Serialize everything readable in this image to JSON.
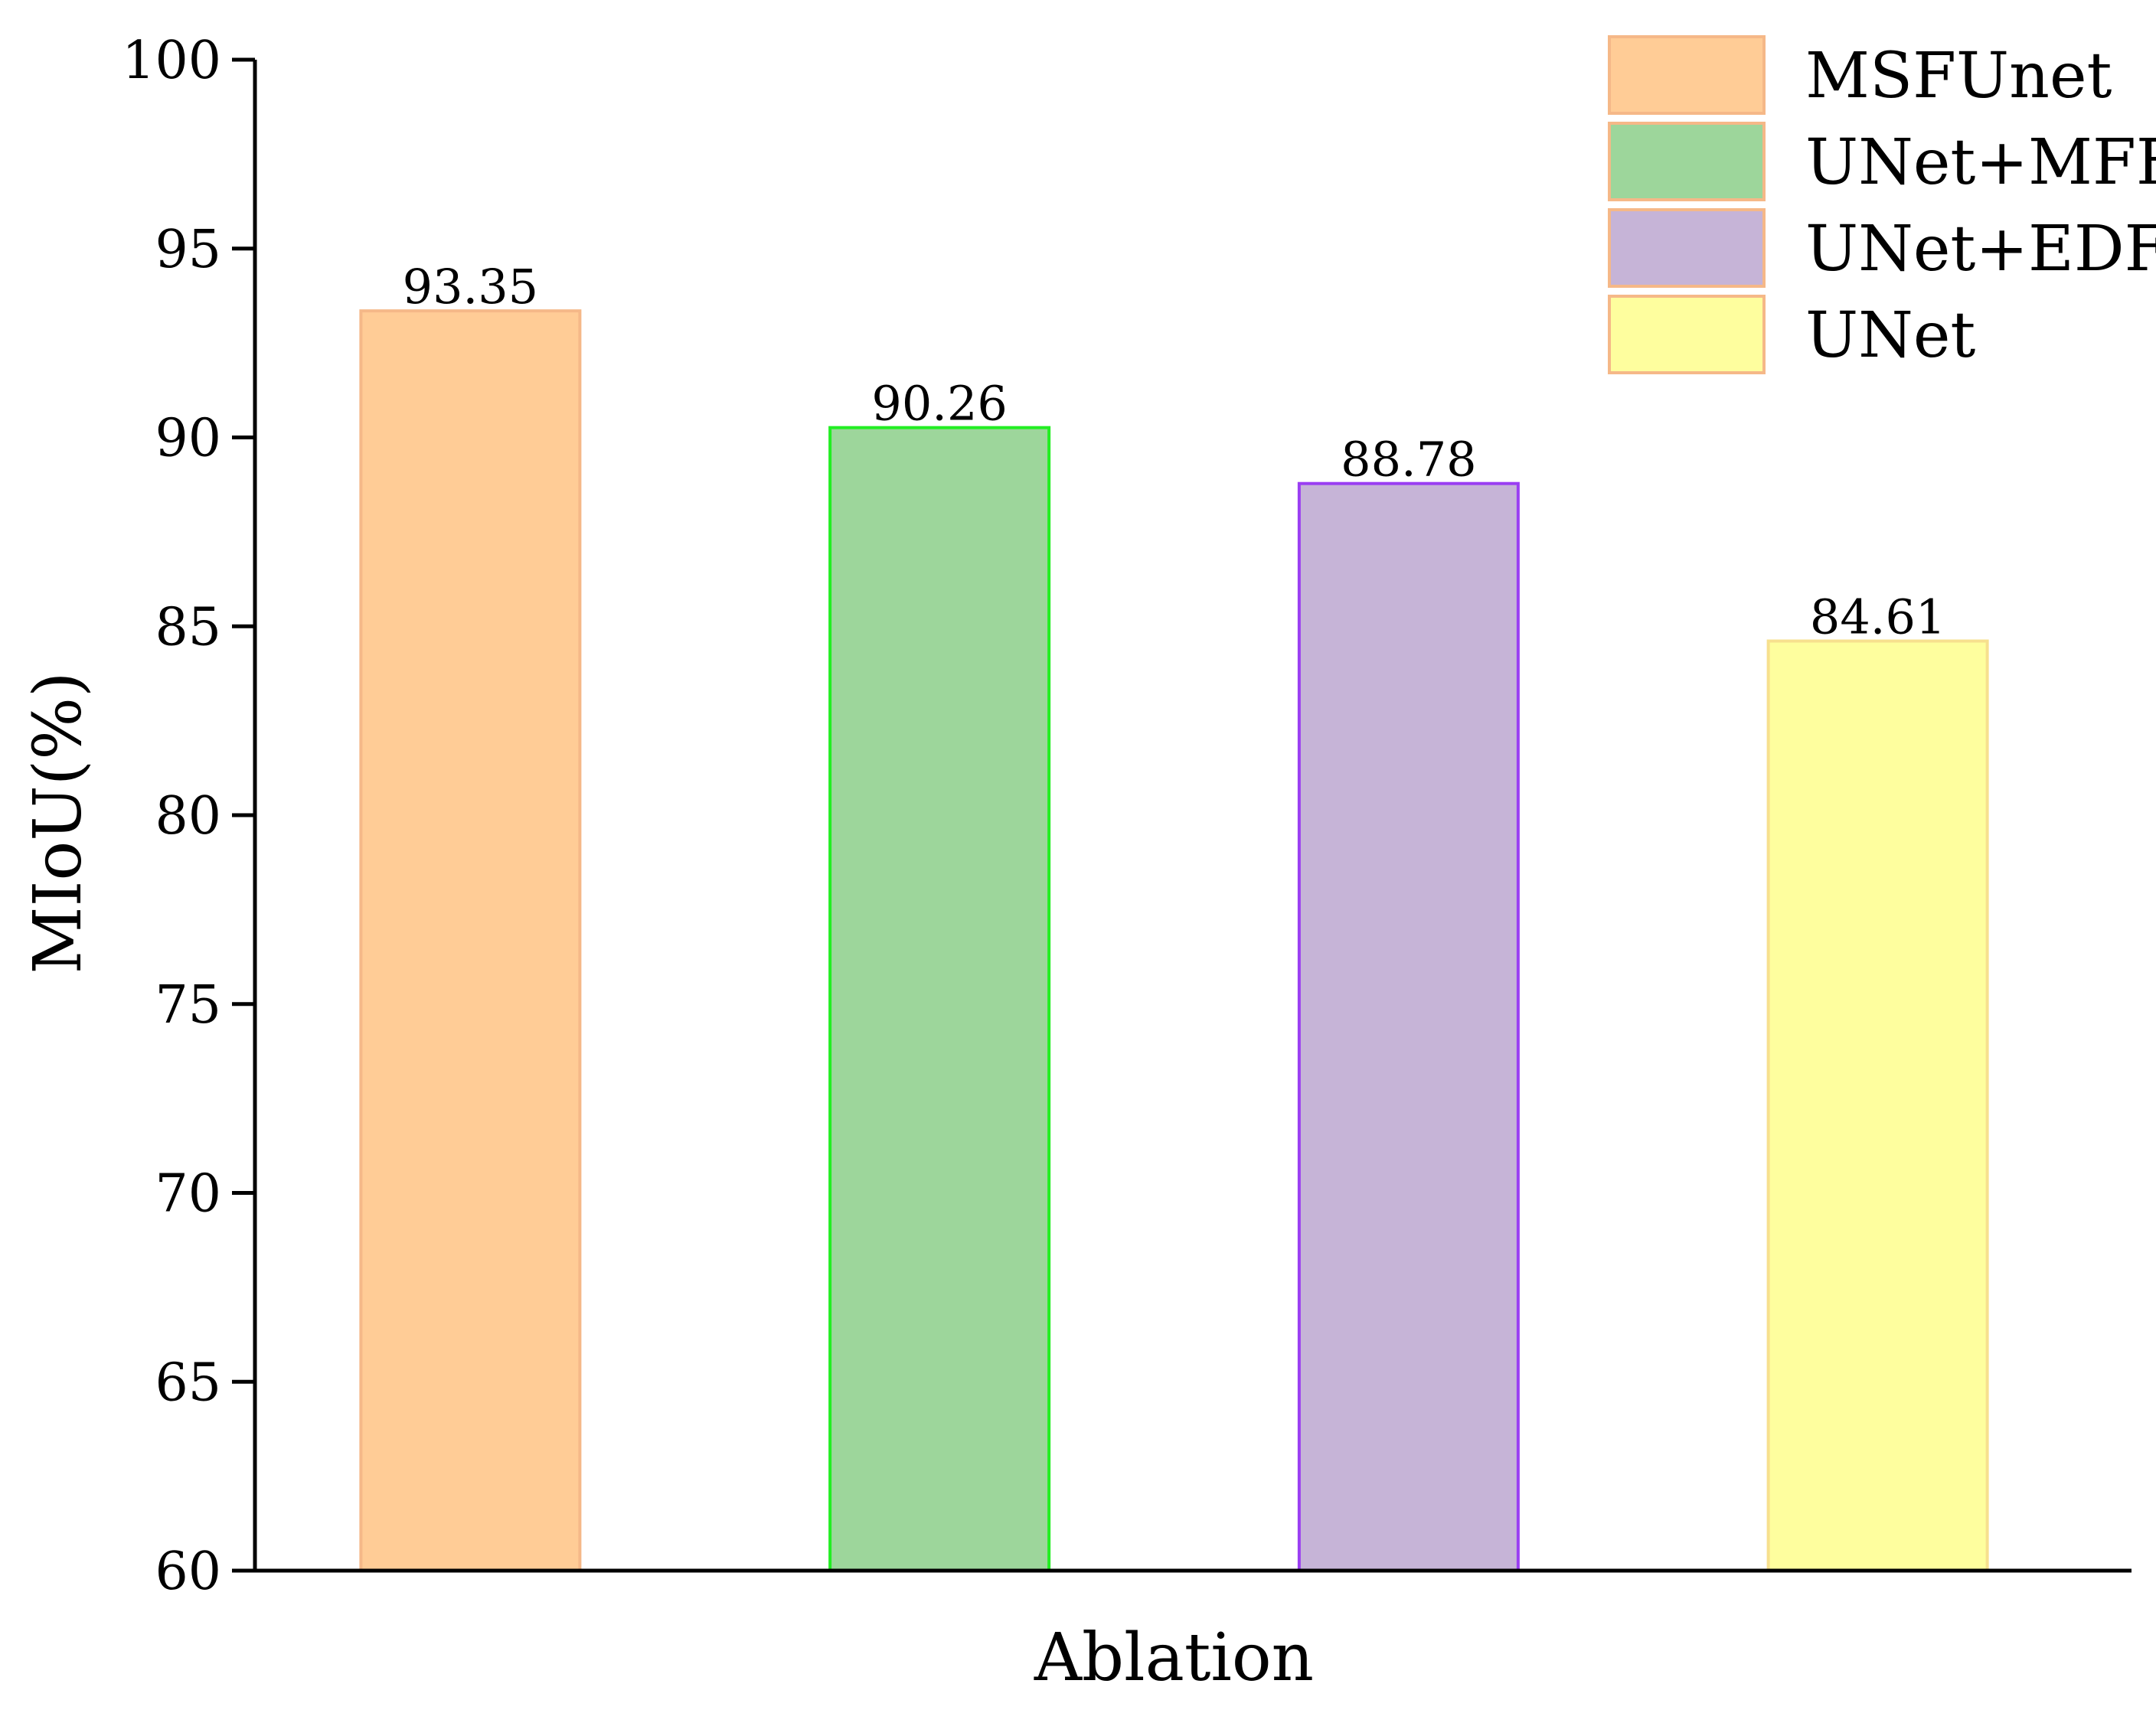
{
  "chart_data": {
    "type": "bar",
    "title": "",
    "xlabel": "Ablation",
    "ylabel": "MIoU(%)",
    "ylim": [
      60,
      100
    ],
    "yticks": [
      60,
      65,
      70,
      75,
      80,
      85,
      90,
      95,
      100
    ],
    "tick_labels": [
      "60",
      "65",
      "70",
      "75",
      "80",
      "85",
      "90",
      "95",
      "100"
    ],
    "grid": false,
    "legend_position": "top-right",
    "series": [
      {
        "name": "MSFUnet",
        "value": 93.35,
        "value_label": "93.35",
        "fill": "#ffcc96",
        "stroke": "#f5b888"
      },
      {
        "name": "UNet+MFF",
        "value": 90.26,
        "value_label": "90.26",
        "fill": "#9dd69b",
        "stroke": "#22ee22"
      },
      {
        "name": "UNet+EDF",
        "value": 88.78,
        "value_label": "88.78",
        "fill": "#c6b4d7",
        "stroke": "#9a3ef2"
      },
      {
        "name": "UNet",
        "value": 84.61,
        "value_label": "84.61",
        "fill": "#fefe9e",
        "stroke": "#f7e08e"
      }
    ],
    "legend_border": "#f5b888"
  }
}
